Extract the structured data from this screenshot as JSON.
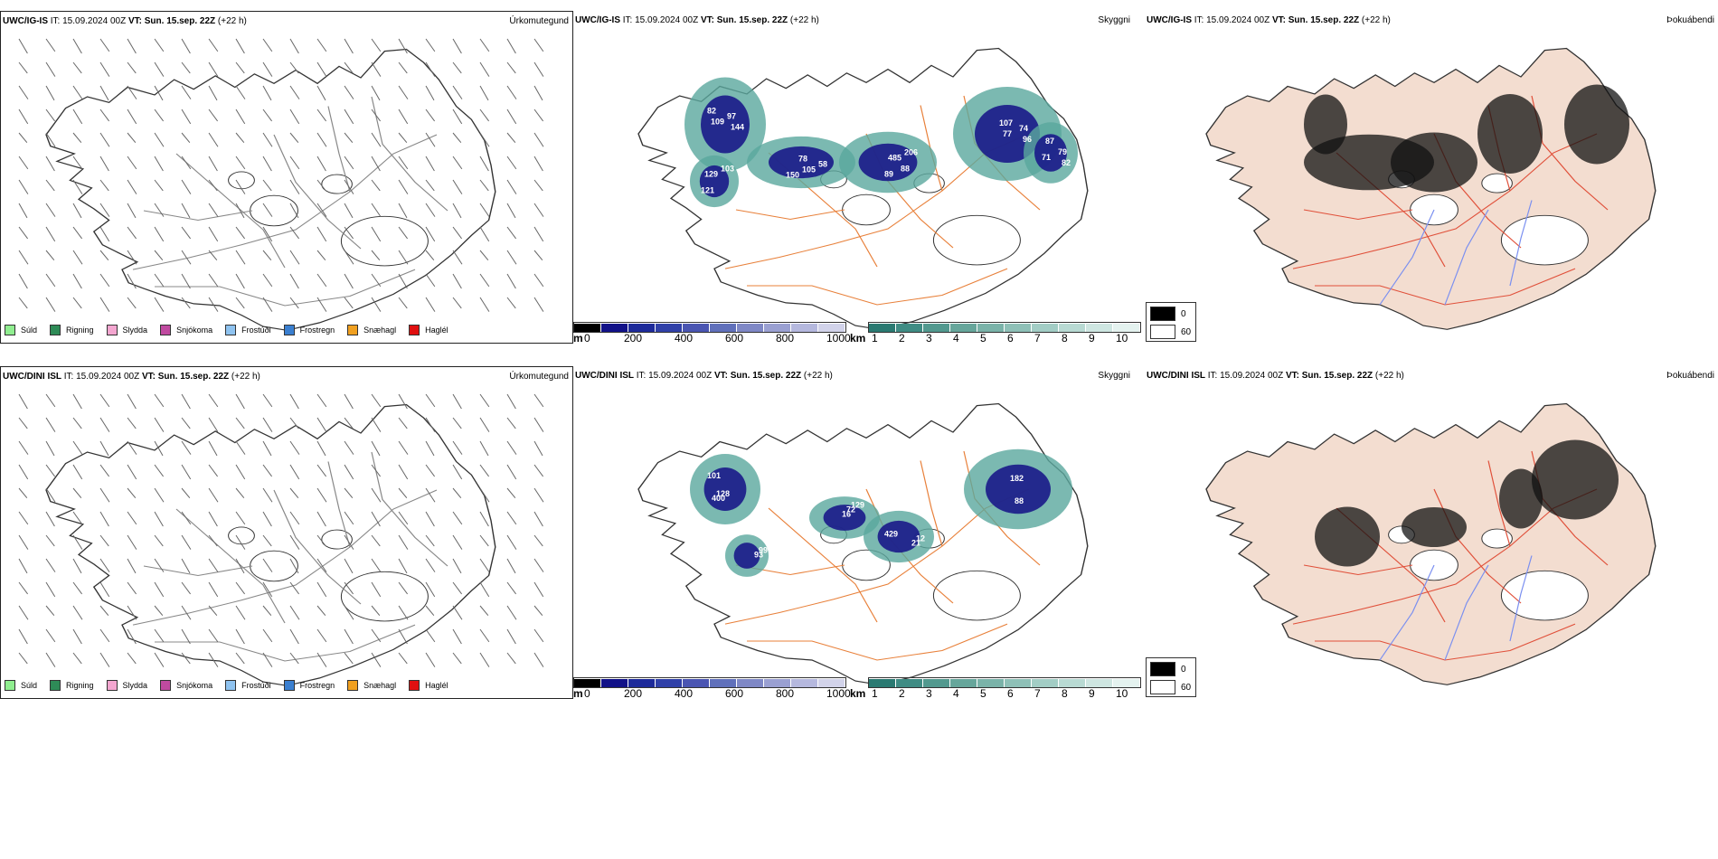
{
  "rows": [
    {
      "model": "UWC/IG-IS",
      "issue_label": "IT:",
      "issue_time": "15.09.2024 00Z",
      "valid_label": "VT:",
      "valid_time": "Sun. 15.sep. 22Z",
      "lead": "(+22 h)",
      "precip_title": "Úrkomutegund",
      "cloud_title": "Skyggni",
      "fog_title": "Þokuábendi",
      "cloud_labels": [
        "82",
        "78",
        "88",
        "107",
        "79",
        "121",
        "97",
        "58",
        "89",
        "74",
        "71",
        "103",
        "109",
        "105",
        "206",
        "77",
        "82",
        "129",
        "144",
        "150",
        "485",
        "96",
        "87"
      ]
    },
    {
      "model": "UWC/DINI ISL",
      "issue_label": "IT:",
      "issue_time": "15.09.2024 00Z",
      "valid_label": "VT:",
      "valid_time": "Sun. 15.sep. 22Z",
      "lead": "(+22 h)",
      "precip_title": "Úrkomutegund",
      "cloud_title": "Skyggni",
      "fog_title": "Þokuábendi",
      "cloud_labels": [
        "101",
        "16",
        "21",
        "182",
        "93",
        "400",
        "72",
        "12",
        "88",
        "99",
        "128",
        "129",
        "429"
      ]
    }
  ],
  "precip_legend": [
    {
      "label": "Súld",
      "color": "#90ee90"
    },
    {
      "label": "Rigning",
      "color": "#2e8b57"
    },
    {
      "label": "Slydda",
      "color": "#f4a6d0"
    },
    {
      "label": "Snjókoma",
      "color": "#c04aa0"
    },
    {
      "label": "Frostúði",
      "color": "#8fc3f0"
    },
    {
      "label": "Frostregn",
      "color": "#3a7fd0"
    },
    {
      "label": "Snæhagl",
      "color": "#f0a020"
    },
    {
      "label": "Haglél",
      "color": "#e01010"
    }
  ],
  "height_bar": {
    "unit": "m",
    "ticks": [
      "0",
      "200",
      "400",
      "600",
      "800",
      "1000"
    ],
    "colors": [
      "#000000",
      "#111188",
      "#1d2a9a",
      "#3040a8",
      "#4a55b2",
      "#6070bb",
      "#7f88c6",
      "#9aa0d2",
      "#b5b8de",
      "#d2d3ea"
    ]
  },
  "vis_bar": {
    "unit": "km",
    "ticks": [
      "1",
      "2",
      "3",
      "4",
      "5",
      "6",
      "7",
      "8",
      "9",
      "10"
    ],
    "colors": [
      "#2a7a72",
      "#3f8c84",
      "#52998f",
      "#66a69b",
      "#7ab3a9",
      "#8ec0b7",
      "#a2cdc5",
      "#b8dad3",
      "#cee6e1",
      "#e4f2ef"
    ]
  },
  "fog_legend": [
    {
      "label": "0",
      "color": "#000000"
    },
    {
      "label": "60",
      "color": "#ffffff"
    }
  ]
}
